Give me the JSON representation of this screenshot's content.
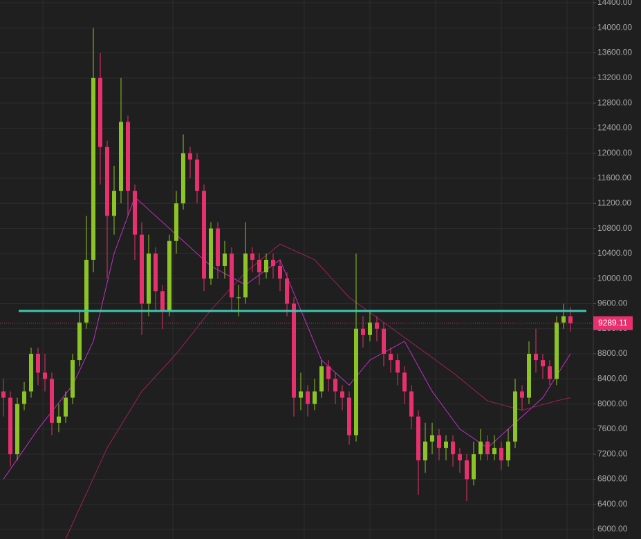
{
  "chart_data": {
    "type": "candlestick",
    "categories": [
      null,
      null,
      null,
      null,
      null,
      null,
      null,
      null,
      null,
      null,
      null,
      null,
      null,
      null,
      null,
      null,
      null,
      null,
      null,
      null,
      null,
      null,
      null,
      null,
      null,
      null,
      null,
      null,
      null,
      null,
      null,
      null,
      null,
      null,
      null,
      null,
      null,
      null,
      null,
      null,
      null,
      null,
      null,
      null,
      null,
      null,
      null,
      null,
      null,
      null,
      null,
      null,
      null,
      null,
      null,
      null,
      null,
      null,
      null,
      null,
      null,
      null,
      null,
      null,
      null,
      null,
      null,
      null,
      null,
      null,
      null,
      null,
      null,
      null,
      null,
      null,
      null,
      null,
      null,
      null,
      null,
      null,
      null
    ],
    "open": [
      8200,
      8100,
      7200,
      8000,
      8200,
      8800,
      8500,
      8400,
      7700,
      7800,
      8100,
      8700,
      9300,
      10300,
      13200,
      12100,
      11000,
      11400,
      12500,
      11400,
      10700,
      9600,
      10400,
      9800,
      9500,
      10600,
      11200,
      12000,
      11900,
      11400,
      10000,
      10800,
      10200,
      10400,
      9700,
      9700,
      10400,
      10300,
      10100,
      10300,
      10200,
      10000,
      9600,
      8100,
      8200,
      8000,
      8200,
      8600,
      8400,
      8200,
      8100,
      7500,
      9200,
      9100,
      9300,
      9200,
      8800,
      8700,
      8500,
      8200,
      7800,
      7100,
      7400,
      7500,
      7300,
      7400,
      7200,
      7100,
      6800,
      7200,
      7400,
      7200,
      7300,
      7100,
      7400,
      8200,
      8100,
      8800,
      8700,
      8600,
      8400,
      9300,
      9400
    ],
    "high": [
      8400,
      8200,
      8100,
      8350,
      8900,
      8900,
      8800,
      8500,
      8000,
      8200,
      8800,
      9500,
      11000,
      14000,
      13600,
      12200,
      11800,
      13200,
      12600,
      11500,
      10900,
      10700,
      10500,
      9900,
      10700,
      11400,
      12300,
      12100,
      12000,
      11500,
      10900,
      10900,
      10600,
      10500,
      9900,
      10900,
      10500,
      10400,
      10400,
      10400,
      10300,
      10100,
      9700,
      8500,
      8300,
      8400,
      8700,
      8700,
      8500,
      8300,
      8200,
      10400,
      9400,
      9500,
      9400,
      9300,
      8900,
      8800,
      8600,
      8300,
      7900,
      7700,
      7700,
      7600,
      7500,
      7500,
      7300,
      7200,
      7400,
      7600,
      7500,
      7500,
      7400,
      7600,
      8400,
      8300,
      9000,
      9200,
      8800,
      8700,
      9400,
      9600,
      9550
    ],
    "low": [
      7800,
      7000,
      7100,
      7900,
      8100,
      8300,
      8200,
      7500,
      7550,
      7700,
      8000,
      8600,
      9200,
      10100,
      11500,
      10000,
      10700,
      11200,
      11000,
      10300,
      9100,
      9400,
      9500,
      9200,
      9400,
      10400,
      11100,
      11600,
      11200,
      9800,
      9900,
      10000,
      10000,
      9500,
      9400,
      9600,
      10100,
      9900,
      10000,
      10000,
      9800,
      9400,
      7800,
      7900,
      7800,
      7900,
      8100,
      8200,
      8000,
      7900,
      7350,
      7400,
      8900,
      9000,
      9000,
      8600,
      8500,
      8300,
      8000,
      7600,
      6550,
      6900,
      7200,
      7100,
      7100,
      7000,
      6900,
      6450,
      6700,
      7100,
      7100,
      7100,
      6950,
      7000,
      7300,
      7900,
      8000,
      8500,
      8400,
      8300,
      8300,
      9200,
      9150
    ],
    "close": [
      8100,
      7200,
      8000,
      8200,
      8800,
      8500,
      8400,
      7700,
      7800,
      8100,
      8700,
      9300,
      10300,
      13200,
      12100,
      11000,
      11400,
      12500,
      11400,
      10700,
      9600,
      10400,
      9800,
      9500,
      10600,
      11200,
      12000,
      11900,
      11400,
      10000,
      10800,
      10200,
      10400,
      9700,
      9700,
      10400,
      10300,
      10100,
      10300,
      10200,
      10000,
      9600,
      8100,
      8200,
      8000,
      8200,
      8600,
      8400,
      8200,
      8100,
      7500,
      9200,
      9100,
      9300,
      9200,
      8800,
      8700,
      8500,
      8200,
      7800,
      7100,
      7400,
      7500,
      7300,
      7400,
      7200,
      7100,
      6800,
      7200,
      7400,
      7200,
      7300,
      7100,
      7400,
      8200,
      8100,
      8800,
      8700,
      8600,
      8400,
      9300,
      9400,
      9289.11
    ],
    "up_color": "#8cc425",
    "down_color": "#e8306e",
    "overlays": [
      {
        "color": "#c030c8",
        "x": [
          0,
          5,
          10,
          13,
          16,
          19,
          22,
          26,
          30,
          35,
          40,
          43,
          46,
          50,
          53,
          58,
          62,
          66,
          70,
          74,
          78,
          82
        ],
        "values": [
          6800,
          7600,
          8300,
          9000,
          10400,
          11300,
          11000,
          10600,
          10200,
          9900,
          10300,
          9500,
          8700,
          8300,
          8700,
          9000,
          8200,
          7600,
          7300,
          7700,
          8100,
          8800
        ]
      },
      {
        "color": "#a0205a",
        "x": [
          9,
          15,
          20,
          25,
          30,
          35,
          40,
          45,
          50,
          55,
          60,
          65,
          70,
          75,
          80,
          82
        ],
        "values": [
          5850,
          7300,
          8200,
          8800,
          9500,
          10100,
          10550,
          10300,
          9700,
          9300,
          8900,
          8500,
          8050,
          7900,
          8050,
          8100
        ]
      }
    ],
    "hline": {
      "value": 9483,
      "color": "#3cc8b0"
    },
    "ylim": [
      5846,
      14444
    ],
    "yticks": [
      {
        "value": 6000,
        "label": "6000.00"
      },
      {
        "value": 6400,
        "label": "6400.00"
      },
      {
        "value": 6800,
        "label": "6800.00"
      },
      {
        "value": 7200,
        "label": "7200.00"
      },
      {
        "value": 7600,
        "label": "7600.00"
      },
      {
        "value": 8000,
        "label": "8000.00"
      },
      {
        "value": 8400,
        "label": "8400.00"
      },
      {
        "value": 8800,
        "label": "8800.00"
      },
      {
        "value": 9200,
        "label": "9200.00"
      },
      {
        "value": 9600,
        "label": "9600.00"
      },
      {
        "value": 10000,
        "label": "10000.00"
      },
      {
        "value": 10400,
        "label": "10400.00"
      },
      {
        "value": 10800,
        "label": "10800.00"
      },
      {
        "value": 11200,
        "label": "11200.00"
      },
      {
        "value": 11600,
        "label": "11600.00"
      },
      {
        "value": 12000,
        "label": "12000.00"
      },
      {
        "value": 12400,
        "label": "12400.00"
      },
      {
        "value": 12800,
        "label": "12800.00"
      },
      {
        "value": 13200,
        "label": "13200.00"
      },
      {
        "value": 13600,
        "label": "13600.00"
      },
      {
        "value": 14000,
        "label": "14000.00"
      },
      {
        "value": 14400,
        "label": "14400.00"
      }
    ],
    "grid": true
  }
}
